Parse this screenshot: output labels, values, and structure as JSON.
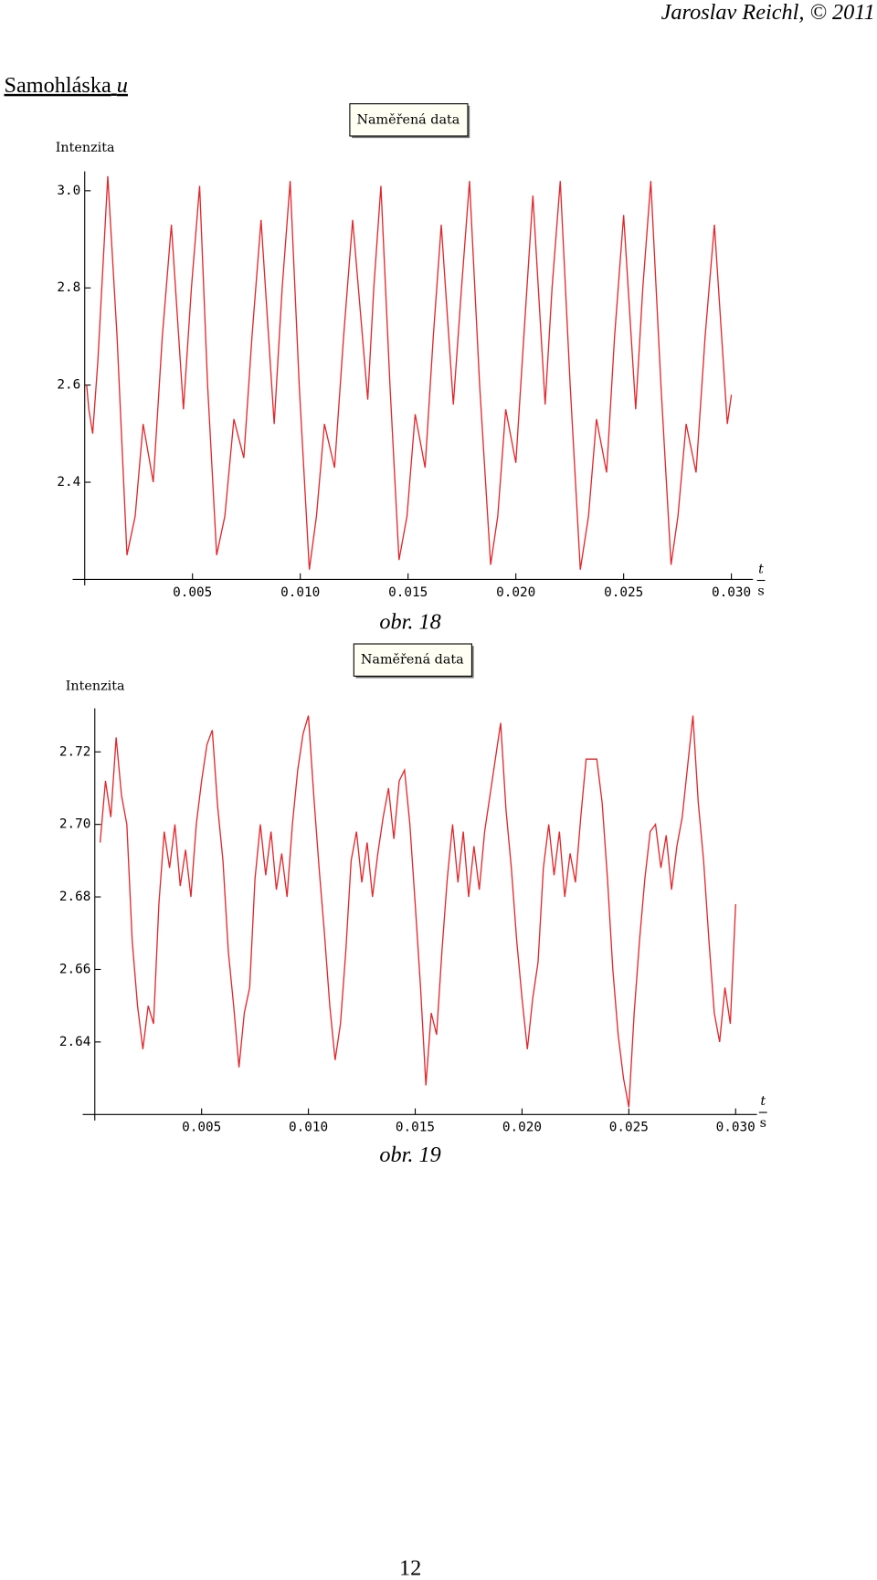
{
  "header": "Jaroslav Reichl, © 2011",
  "heading": {
    "text": "Samohláska",
    "italic": "u"
  },
  "page_number": "12",
  "chart_data": [
    {
      "type": "line",
      "ylabel": "Intenzita",
      "xlabel": "t",
      "xunit": "s",
      "caption": "obr. 18",
      "xlim": [
        0,
        0.031
      ],
      "ylim": [
        2.2,
        3.04
      ],
      "xticks": [
        0.005,
        {
          "value": 0.01,
          "label": "0.010"
        },
        0.015,
        {
          "value": 0.02,
          "label": "0.020"
        },
        0.025,
        {
          "value": 0.03,
          "label": "0.030"
        }
      ],
      "yticks": [
        2.4,
        2.6,
        2.8,
        {
          "value": 3,
          "label": "3.0"
        }
      ],
      "x": [
        9e-05,
        0.00019,
        0.00037,
        0.00061,
        0.00107,
        0.0015,
        0.00196,
        0.00234,
        0.00271,
        0.00318,
        0.0036,
        0.00402,
        0.00458,
        0.00495,
        0.00533,
        0.0057,
        0.00612,
        0.0065,
        0.00692,
        0.00738,
        0.00776,
        0.00818,
        0.00879,
        0.00916,
        0.00953,
        0.00995,
        0.01042,
        0.01075,
        0.01112,
        0.01159,
        0.01201,
        0.01243,
        0.01313,
        0.01341,
        0.01374,
        0.01416,
        0.01458,
        0.01495,
        0.01533,
        0.01579,
        0.01617,
        0.01654,
        0.0171,
        0.01748,
        0.01785,
        0.01832,
        0.01883,
        0.01916,
        0.01953,
        0.02,
        0.02037,
        0.02079,
        0.02136,
        0.02168,
        0.02206,
        0.02252,
        0.02299,
        0.02337,
        0.02374,
        0.02421,
        0.02458,
        0.025,
        0.02556,
        0.02589,
        0.02626,
        0.02673,
        0.0272,
        0.02752,
        0.0279,
        0.02836,
        0.02878,
        0.02921,
        0.02981,
        0.03
      ],
      "series": [
        {
          "name": "Naměřená data",
          "color": "#e3262b",
          "values": [
            2.6,
            2.55,
            2.5,
            2.65,
            3.03,
            2.7,
            2.25,
            2.33,
            2.52,
            2.4,
            2.7,
            2.93,
            2.55,
            2.8,
            3.01,
            2.6,
            2.25,
            2.33,
            2.53,
            2.45,
            2.7,
            2.94,
            2.52,
            2.8,
            3.02,
            2.6,
            2.22,
            2.33,
            2.52,
            2.43,
            2.7,
            2.94,
            2.57,
            2.8,
            3.01,
            2.6,
            2.24,
            2.33,
            2.54,
            2.43,
            2.7,
            2.93,
            2.56,
            2.8,
            3.02,
            2.6,
            2.23,
            2.33,
            2.55,
            2.44,
            2.7,
            2.99,
            2.56,
            2.8,
            3.02,
            2.6,
            2.22,
            2.33,
            2.53,
            2.42,
            2.7,
            2.95,
            2.55,
            2.8,
            3.02,
            2.6,
            2.23,
            2.33,
            2.52,
            2.42,
            2.7,
            2.93,
            2.52,
            2.58
          ]
        }
      ]
    },
    {
      "type": "line",
      "ylabel": "Intenzita",
      "xlabel": "t",
      "xunit": "s",
      "caption": "obr. 19",
      "xlim": [
        0,
        0.031
      ],
      "ylim": [
        2.62,
        2.732
      ],
      "xticks": [
        0.005,
        {
          "value": 0.01,
          "label": "0.010"
        },
        0.015,
        {
          "value": 0.02,
          "label": "0.020"
        },
        0.025,
        {
          "value": 0.03,
          "label": "0.030"
        }
      ],
      "yticks": [
        2.64,
        2.66,
        2.68,
        {
          "value": 2.7,
          "label": "2.70"
        },
        2.72
      ],
      "x": [
        0.00025,
        0.0005,
        0.00075,
        0.001,
        0.00125,
        0.0015,
        0.00175,
        0.002,
        0.00225,
        0.0025,
        0.00275,
        0.003,
        0.00325,
        0.0035,
        0.00375,
        0.004,
        0.00425,
        0.0045,
        0.00475,
        0.005,
        0.00525,
        0.0055,
        0.00575,
        0.006,
        0.00625,
        0.0065,
        0.00675,
        0.007,
        0.00725,
        0.0075,
        0.00775,
        0.008,
        0.00825,
        0.0085,
        0.00875,
        0.009,
        0.00925,
        0.0095,
        0.00975,
        0.01,
        0.01025,
        0.0105,
        0.01075,
        0.011,
        0.01125,
        0.0115,
        0.01175,
        0.012,
        0.01225,
        0.0125,
        0.01275,
        0.013,
        0.01325,
        0.0135,
        0.01375,
        0.014,
        0.01425,
        0.0145,
        0.01475,
        0.015,
        0.01525,
        0.0155,
        0.01575,
        0.016,
        0.01625,
        0.0165,
        0.01675,
        0.017,
        0.01725,
        0.0175,
        0.01775,
        0.018,
        0.01825,
        0.0185,
        0.01875,
        0.019,
        0.01925,
        0.0195,
        0.01975,
        0.02,
        0.02025,
        0.0205,
        0.02075,
        0.021,
        0.02125,
        0.0215,
        0.02175,
        0.022,
        0.02225,
        0.0225,
        0.02275,
        0.023,
        0.02325,
        0.0235,
        0.02375,
        0.024,
        0.02425,
        0.0245,
        0.02475,
        0.025,
        0.02525,
        0.0255,
        0.02575,
        0.026,
        0.02625,
        0.0265,
        0.02675,
        0.027,
        0.02725,
        0.0275,
        0.02775,
        0.028,
        0.02825,
        0.0285,
        0.02875,
        0.029,
        0.02925,
        0.0295,
        0.02975,
        0.03
      ],
      "series": [
        {
          "name": "Naměřená data",
          "color": "#e3262b",
          "values": [
            2.695,
            2.712,
            2.702,
            2.724,
            2.708,
            2.7,
            2.668,
            2.65,
            2.638,
            2.65,
            2.645,
            2.678,
            2.698,
            2.688,
            2.7,
            2.683,
            2.693,
            2.68,
            2.7,
            2.712,
            2.722,
            2.726,
            2.705,
            2.69,
            2.665,
            2.65,
            2.633,
            2.648,
            2.655,
            2.685,
            2.7,
            2.686,
            2.698,
            2.682,
            2.692,
            2.68,
            2.7,
            2.715,
            2.725,
            2.73,
            2.708,
            2.688,
            2.67,
            2.65,
            2.635,
            2.645,
            2.665,
            2.69,
            2.698,
            2.684,
            2.695,
            2.68,
            2.692,
            2.702,
            2.71,
            2.696,
            2.712,
            2.715,
            2.7,
            2.678,
            2.655,
            2.628,
            2.648,
            2.642,
            2.665,
            2.685,
            2.7,
            2.684,
            2.698,
            2.68,
            2.694,
            2.682,
            2.698,
            2.708,
            2.718,
            2.728,
            2.704,
            2.688,
            2.668,
            2.652,
            2.638,
            2.652,
            2.662,
            2.688,
            2.7,
            2.686,
            2.698,
            2.68,
            2.692,
            2.684,
            2.702,
            2.718,
            2.718,
            2.718,
            2.706,
            2.685,
            2.66,
            2.642,
            2.63,
            2.622,
            2.648,
            2.668,
            2.685,
            2.698,
            2.7,
            2.688,
            2.697,
            2.682,
            2.694,
            2.702,
            2.716,
            2.73,
            2.706,
            2.69,
            2.668,
            2.648,
            2.64,
            2.655,
            2.645,
            2.678
          ]
        }
      ]
    }
  ]
}
